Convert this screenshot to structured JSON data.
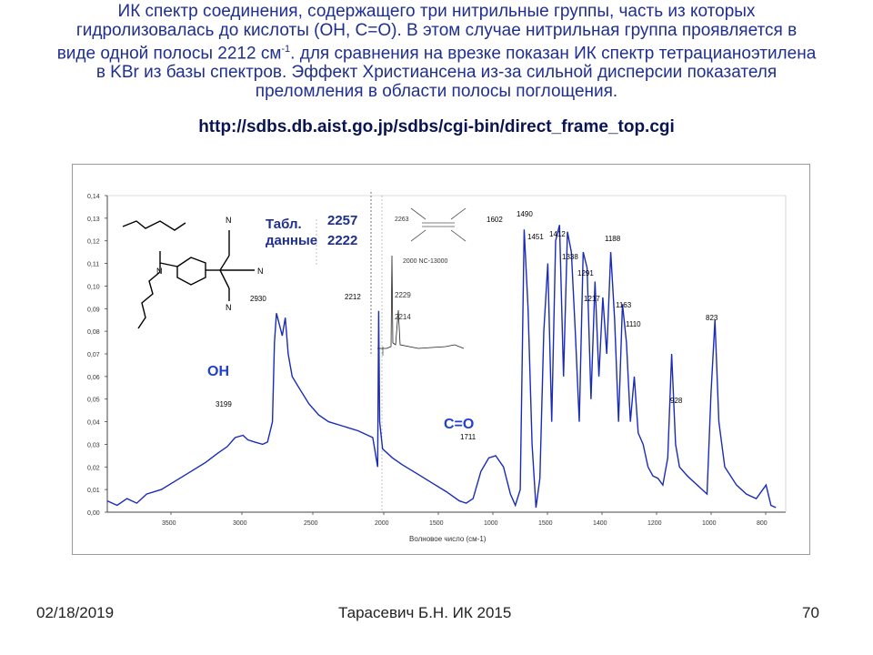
{
  "slide": {
    "title_lines": [
      "ИК спектр соединения, содержащего три нитрильные группы, часть из которых",
      "гидролизовалась до кислоты (ОН, С=О). В этом случае нитрильная группа проявляется в",
      "виде одной полосы 2212 см",
      ". для сравнения на врезке показан ИК спектр тетрацианоэтилена",
      "в KBr  из базы спектров. Эффект Христиансена из-за сильной дисперсии показателя",
      "преломления в области полосы поглощения."
    ],
    "title_sup": "-1",
    "url": "http://sdbs.db.aist.go.jp/sdbs/cgi-bin/direct_frame_top.cgi",
    "footer_date": "02/18/2019",
    "footer_author": "Тарасевич Б.Н.  ИК 2015",
    "footer_page": "70"
  },
  "colors": {
    "title": "#1f2f8f",
    "spectrum": "#1a2bb8",
    "annotation": "#1f3fd0"
  },
  "chart_data": {
    "type": "line",
    "xlabel": "Волновое число (см-1)",
    "x_ticks": [
      "3000",
      "2000",
      "1500",
      "1000",
      "500",
      "1000",
      "1500",
      "1200",
      "1000",
      "800",
      "600"
    ],
    "x_ticks_display": [
      "3500",
      "3000",
      "2500",
      "2000",
      "1500",
      "1000",
      "1500",
      "1400",
      "1200",
      "1000",
      "800",
      "600"
    ],
    "y_ticks": [
      "0,00",
      "0,01",
      "0,02",
      "0,03",
      "0,04",
      "0,05",
      "0,06",
      "0,07",
      "0,08",
      "0,09",
      "0,10",
      "0,11",
      "0,12",
      "0,13",
      "0,14"
    ],
    "ylim": [
      0,
      0.14
    ],
    "annotations": {
      "oh": "OH",
      "co": "C=O",
      "table_label": "Табл.",
      "table_label2": "данные",
      "table_v1": "2257",
      "table_v2": "2222"
    },
    "peak_labels": [
      "3199",
      "2930",
      "2212",
      "1711",
      "1602",
      "1490",
      "1451",
      "1412",
      "1338",
      "1291",
      "1217",
      "1188",
      "1163",
      "1110",
      "928",
      "823"
    ],
    "inset": {
      "labels": [
        "2263",
        "2229",
        "2214"
      ],
      "caption": "2000  NC-13000"
    },
    "spectrum": [
      [
        0,
        0.005
      ],
      [
        10,
        0.003
      ],
      [
        20,
        0.006
      ],
      [
        30,
        0.004
      ],
      [
        40,
        0.008
      ],
      [
        55,
        0.01
      ],
      [
        70,
        0.014
      ],
      [
        85,
        0.018
      ],
      [
        100,
        0.022
      ],
      [
        112,
        0.026
      ],
      [
        122,
        0.029
      ],
      [
        130,
        0.033
      ],
      [
        138,
        0.034
      ],
      [
        143,
        0.032
      ],
      [
        150,
        0.031
      ],
      [
        158,
        0.03
      ],
      [
        163,
        0.031
      ],
      [
        168,
        0.04
      ],
      [
        170,
        0.075
      ],
      [
        172,
        0.088
      ],
      [
        175,
        0.083
      ],
      [
        178,
        0.078
      ],
      [
        181,
        0.086
      ],
      [
        184,
        0.07
      ],
      [
        188,
        0.06
      ],
      [
        195,
        0.055
      ],
      [
        205,
        0.048
      ],
      [
        215,
        0.043
      ],
      [
        225,
        0.04
      ],
      [
        240,
        0.038
      ],
      [
        255,
        0.036
      ],
      [
        270,
        0.033
      ],
      [
        275,
        0.02
      ],
      [
        276,
        0.089
      ],
      [
        277,
        0.04
      ],
      [
        280,
        0.028
      ],
      [
        290,
        0.024
      ],
      [
        300,
        0.021
      ],
      [
        315,
        0.017
      ],
      [
        330,
        0.013
      ],
      [
        345,
        0.009
      ],
      [
        358,
        0.005
      ],
      [
        365,
        0.004
      ],
      [
        372,
        0.006
      ],
      [
        380,
        0.018
      ],
      [
        388,
        0.024
      ],
      [
        395,
        0.025
      ],
      [
        403,
        0.02
      ],
      [
        410,
        0.008
      ],
      [
        415,
        0.003
      ],
      [
        420,
        0.01
      ],
      [
        424,
        0.125
      ],
      [
        428,
        0.09
      ],
      [
        432,
        0.03
      ],
      [
        436,
        0.002
      ],
      [
        440,
        0.015
      ],
      [
        444,
        0.08
      ],
      [
        448,
        0.11
      ],
      [
        452,
        0.04
      ],
      [
        456,
        0.12
      ],
      [
        460,
        0.127
      ],
      [
        464,
        0.06
      ],
      [
        468,
        0.124
      ],
      [
        472,
        0.115
      ],
      [
        476,
        0.08
      ],
      [
        480,
        0.04
      ],
      [
        484,
        0.115
      ],
      [
        488,
        0.108
      ],
      [
        492,
        0.05
      ],
      [
        496,
        0.102
      ],
      [
        500,
        0.06
      ],
      [
        504,
        0.095
      ],
      [
        508,
        0.07
      ],
      [
        512,
        0.115
      ],
      [
        516,
        0.085
      ],
      [
        520,
        0.04
      ],
      [
        524,
        0.092
      ],
      [
        528,
        0.075
      ],
      [
        532,
        0.04
      ],
      [
        536,
        0.06
      ],
      [
        540,
        0.035
      ],
      [
        545,
        0.03
      ],
      [
        550,
        0.02
      ],
      [
        555,
        0.016
      ],
      [
        560,
        0.015
      ],
      [
        565,
        0.012
      ],
      [
        570,
        0.024
      ],
      [
        574,
        0.07
      ],
      [
        578,
        0.03
      ],
      [
        582,
        0.02
      ],
      [
        590,
        0.016
      ],
      [
        600,
        0.012
      ],
      [
        605,
        0.01
      ],
      [
        610,
        0.008
      ],
      [
        614,
        0.052
      ],
      [
        618,
        0.085
      ],
      [
        622,
        0.04
      ],
      [
        628,
        0.02
      ],
      [
        640,
        0.012
      ],
      [
        650,
        0.008
      ],
      [
        660,
        0.006
      ],
      [
        670,
        0.012
      ],
      [
        675,
        0.003
      ],
      [
        680,
        0.002
      ]
    ]
  }
}
